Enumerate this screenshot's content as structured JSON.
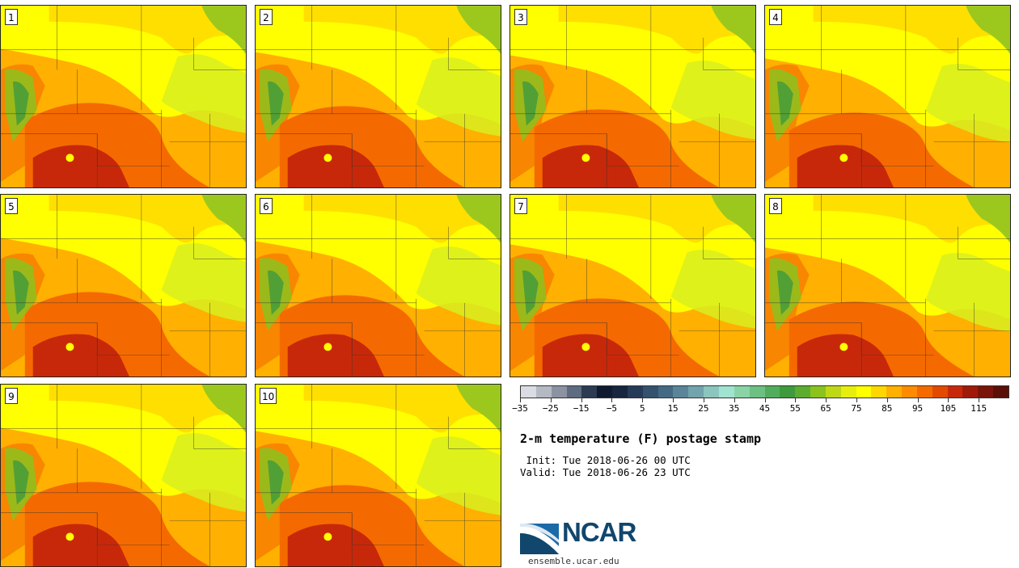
{
  "panels": [
    {
      "label": "1"
    },
    {
      "label": "2"
    },
    {
      "label": "3"
    },
    {
      "label": "4"
    },
    {
      "label": "5"
    },
    {
      "label": "6"
    },
    {
      "label": "7"
    },
    {
      "label": "8"
    },
    {
      "label": "9"
    },
    {
      "label": "10"
    }
  ],
  "colorbar": {
    "colors": [
      "#d9dde3",
      "#b4b9c3",
      "#8b92a1",
      "#5f6b80",
      "#2d3a52",
      "#0f1a30",
      "#17253e",
      "#263b57",
      "#34516d",
      "#446a83",
      "#5a8598",
      "#72a4ab",
      "#8cc5bd",
      "#9fe3d0",
      "#89d3a6",
      "#6bc082",
      "#51ad5d",
      "#3e9a3c",
      "#5cad2d",
      "#8cc21e",
      "#bfd816",
      "#e6ee10",
      "#ffff00",
      "#ffd700",
      "#ffb000",
      "#ff8c00",
      "#f46a00",
      "#e24a00",
      "#c8280a",
      "#a01a0a",
      "#7a140a",
      "#5a0f08"
    ],
    "tick_labels": [
      "-35",
      "-25",
      "-15",
      "-5",
      "5",
      "15",
      "25",
      "35",
      "45",
      "55",
      "65",
      "75",
      "85",
      "95",
      "105",
      "115"
    ],
    "min": -35,
    "max": 125
  },
  "title": "2-m temperature (F) postage stamp",
  "init_line": " Init: Tue 2018-06-26 00 UTC",
  "valid_line": "Valid: Tue 2018-06-26 23 UTC",
  "logo": {
    "text": "NCAR",
    "site": "ensemble.ucar.edu"
  }
}
